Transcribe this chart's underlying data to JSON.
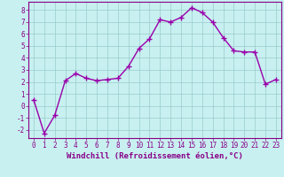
{
  "x": [
    0,
    1,
    2,
    3,
    4,
    5,
    6,
    7,
    8,
    9,
    10,
    11,
    12,
    13,
    14,
    15,
    16,
    17,
    18,
    19,
    20,
    21,
    22,
    23
  ],
  "y": [
    0.5,
    -2.3,
    -0.8,
    2.1,
    2.7,
    2.3,
    2.1,
    2.2,
    2.3,
    3.3,
    4.8,
    5.6,
    7.2,
    7.0,
    7.4,
    8.2,
    7.8,
    7.0,
    5.7,
    4.6,
    4.5,
    4.5,
    1.8,
    2.2
  ],
  "line_color": "#9900aa",
  "marker": "+",
  "marker_size": 4,
  "bg_color": "#c8f0f0",
  "grid_color": "#99cccc",
  "xlabel": "Windchill (Refroidissement éolien,°C)",
  "xlim_min": -0.5,
  "xlim_max": 23.5,
  "ylim_min": -2.7,
  "ylim_max": 8.7,
  "yticks": [
    -2,
    -1,
    0,
    1,
    2,
    3,
    4,
    5,
    6,
    7,
    8
  ],
  "xticks": [
    0,
    1,
    2,
    3,
    4,
    5,
    6,
    7,
    8,
    9,
    10,
    11,
    12,
    13,
    14,
    15,
    16,
    17,
    18,
    19,
    20,
    21,
    22,
    23
  ],
  "axis_color": "#880088",
  "tick_color": "#880088",
  "xlabel_color": "#880088",
  "tick_fontsize": 5.5,
  "xlabel_fontsize": 6.5,
  "linewidth": 1.0,
  "markeredgewidth": 1.0
}
